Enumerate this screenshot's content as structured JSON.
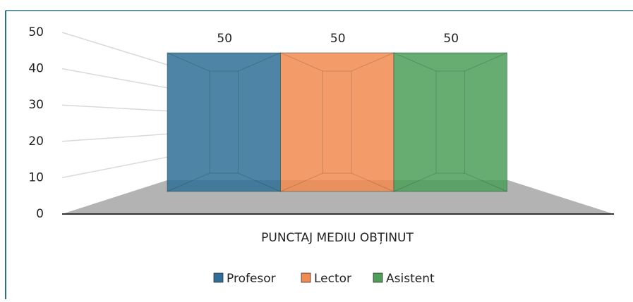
{
  "chart_data": {
    "type": "bar3d",
    "categories": [
      "PUNCTAJ MEDIU OBȚINUT"
    ],
    "series": [
      {
        "name": "Profesor",
        "color": "#2f6f97",
        "values": [
          50
        ]
      },
      {
        "name": "Lector",
        "color": "#f28b4f",
        "values": [
          50
        ]
      },
      {
        "name": "Asistent",
        "color": "#4c9e58",
        "values": [
          50
        ]
      }
    ],
    "ylim": [
      0,
      50
    ],
    "yticks": [
      0,
      10,
      20,
      30,
      40,
      50
    ],
    "grid": true,
    "legend": "bottom"
  }
}
